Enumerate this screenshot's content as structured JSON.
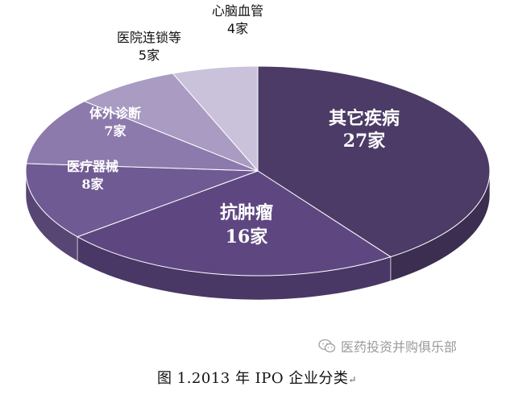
{
  "chart_data": {
    "type": "pie",
    "title": "",
    "slices": [
      {
        "label": "其它疾病",
        "value": 27,
        "value_text": "27家",
        "color": "#4b3b66"
      },
      {
        "label": "抗肿瘤",
        "value": 16,
        "value_text": "16家",
        "color": "#5e4781"
      },
      {
        "label": "医疗器械",
        "value": 8,
        "value_text": "8家",
        "color": "#6f5a93"
      },
      {
        "label": "体外诊断",
        "value": 7,
        "value_text": "7家",
        "color": "#8c7aac"
      },
      {
        "label": "医院连锁等",
        "value": 5,
        "value_text": "5家",
        "color": "#a99bc2"
      },
      {
        "label": "心脑血管",
        "value": 4,
        "value_text": "4家",
        "color": "#cac2da"
      }
    ],
    "label_placement": {
      "其它疾病": "inside",
      "抗肿瘤": "inside",
      "医疗器械": "inside",
      "体外诊断": "inside",
      "医院连锁等": "outside",
      "心脑血管": "outside"
    },
    "style": "3d-pie"
  },
  "caption": "图 1.2013 年 IPO 企业分类",
  "caption_mark": "↵",
  "watermark": {
    "text": "医药投资并购俱乐部",
    "icon": "wechat-icon"
  }
}
